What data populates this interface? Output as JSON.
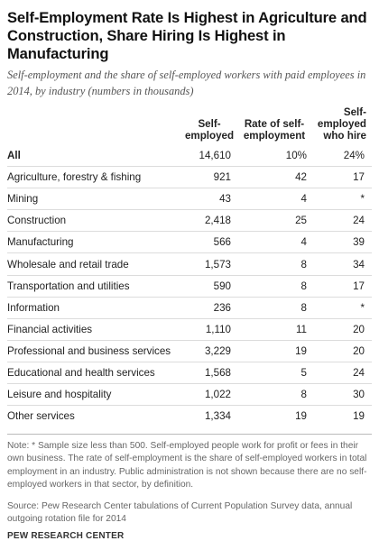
{
  "chart_data": {
    "type": "table",
    "title": "Self-Employment Rate Is Highest in Agriculture and Construction, Share Hiring Is Highest in Manufacturing",
    "subtitle": "Self-employment and the share of self-employed workers with paid employees in 2014, by industry (numbers in thousands)",
    "columns": [
      "Self-employed",
      "Rate of self-employment",
      "Self-employed who hire"
    ],
    "rows": [
      {
        "label": "All",
        "self_employed": "14,610",
        "rate": "10%",
        "hire": "24%"
      },
      {
        "label": "Agriculture, forestry & fishing",
        "self_employed": "921",
        "rate": "42",
        "hire": "17"
      },
      {
        "label": "Mining",
        "self_employed": "43",
        "rate": "4",
        "hire": "*"
      },
      {
        "label": "Construction",
        "self_employed": "2,418",
        "rate": "25",
        "hire": "24"
      },
      {
        "label": "Manufacturing",
        "self_employed": "566",
        "rate": "4",
        "hire": "39"
      },
      {
        "label": "Wholesale and retail trade",
        "self_employed": "1,573",
        "rate": "8",
        "hire": "34"
      },
      {
        "label": "Transportation and utilities",
        "self_employed": "590",
        "rate": "8",
        "hire": "17"
      },
      {
        "label": "Information",
        "self_employed": "236",
        "rate": "8",
        "hire": "*"
      },
      {
        "label": "Financial activities",
        "self_employed": "1,110",
        "rate": "11",
        "hire": "20"
      },
      {
        "label": "Professional and business services",
        "self_employed": "3,229",
        "rate": "19",
        "hire": "20"
      },
      {
        "label": "Educational and health services",
        "self_employed": "1,568",
        "rate": "5",
        "hire": "24"
      },
      {
        "label": "Leisure and hospitality",
        "self_employed": "1,022",
        "rate": "8",
        "hire": "30"
      },
      {
        "label": "Other services",
        "self_employed": "1,334",
        "rate": "19",
        "hire": "19"
      }
    ]
  },
  "headers": {
    "self_employed": "Self-\nemployed",
    "rate": "Rate of self-\nemployment",
    "hire": "Self-\nemployed\nwho hire"
  },
  "note": "Note: * Sample size less than 500. Self-employed people work for profit or fees in their own business. The rate of self-employment is the share of self-employed workers in total employment in an industry. Public administration is not shown because there are no self-employed workers in that sector, by definition.",
  "source": "Source: Pew Research Center tabulations of Current Population Survey data, annual outgoing rotation file for 2014",
  "brand": "PEW RESEARCH CENTER"
}
